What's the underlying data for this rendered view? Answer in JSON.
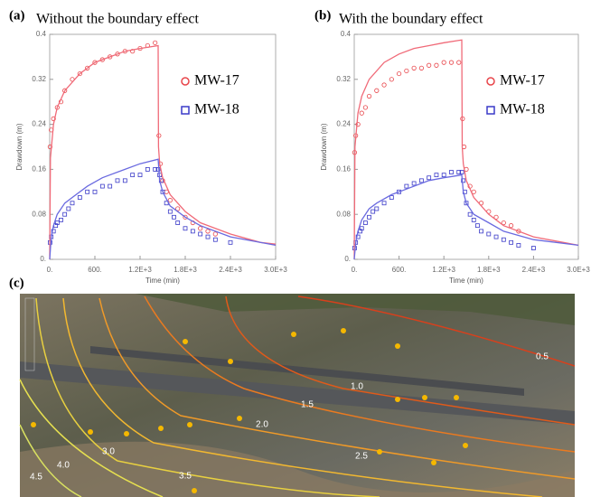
{
  "chart_data": [
    {
      "type": "scatter",
      "label": "(a)",
      "title": "Without the boundary effect",
      "x_label": "Time (min)",
      "y_label": "Drawdown (m)",
      "xlim": [
        0,
        3000
      ],
      "ylim": [
        0,
        0.4
      ],
      "xticks": [
        {
          "value": 0,
          "label": "0."
        },
        {
          "value": 600,
          "label": "600."
        },
        {
          "value": 1200,
          "label": "1.2E+3"
        },
        {
          "value": 1800,
          "label": "1.8E+3"
        },
        {
          "value": 2400,
          "label": "2.4E+3"
        },
        {
          "value": 3000,
          "label": "3.0E+3"
        }
      ],
      "yticks": [
        {
          "value": 0,
          "label": "0."
        },
        0.08,
        0.16,
        0.24,
        0.32,
        0.4
      ],
      "legend": "right",
      "series": [
        {
          "name": "MW-17",
          "marker": "circle",
          "color": "#e8454a",
          "x": [
            5,
            20,
            50,
            100,
            150,
            200,
            300,
            400,
            500,
            600,
            700,
            800,
            900,
            1000,
            1100,
            1200,
            1300,
            1400,
            1450,
            1470,
            1500,
            1550,
            1600,
            1700,
            1800,
            1900,
            2000,
            2100,
            2200
          ],
          "values": [
            0.2,
            0.23,
            0.25,
            0.27,
            0.28,
            0.3,
            0.32,
            0.33,
            0.34,
            0.35,
            0.355,
            0.36,
            0.365,
            0.37,
            0.37,
            0.375,
            0.38,
            0.385,
            0.22,
            0.17,
            0.14,
            0.12,
            0.105,
            0.09,
            0.075,
            0.065,
            0.055,
            0.05,
            0.045
          ]
        },
        {
          "name": "MW-18",
          "marker": "square",
          "color": "#3a3ac8",
          "x": [
            5,
            20,
            50,
            80,
            100,
            150,
            200,
            250,
            300,
            400,
            500,
            600,
            700,
            800,
            900,
            1000,
            1100,
            1200,
            1300,
            1400,
            1440,
            1460,
            1480,
            1500,
            1550,
            1600,
            1650,
            1700,
            1800,
            1900,
            2000,
            2100,
            2200,
            2400
          ],
          "values": [
            0.03,
            0.04,
            0.05,
            0.06,
            0.065,
            0.07,
            0.08,
            0.09,
            0.1,
            0.11,
            0.12,
            0.12,
            0.13,
            0.13,
            0.14,
            0.14,
            0.15,
            0.15,
            0.16,
            0.16,
            0.16,
            0.15,
            0.14,
            0.12,
            0.1,
            0.085,
            0.075,
            0.065,
            0.055,
            0.05,
            0.045,
            0.04,
            0.035,
            0.03
          ]
        },
        {
          "marker": "line",
          "color": "#f06a78",
          "x": [
            0,
            10,
            50,
            100,
            200,
            400,
            600,
            800,
            1000,
            1200,
            1440,
            1445,
            1460,
            1500,
            1600,
            1800,
            2000,
            2400,
            2800,
            3000
          ],
          "values": [
            0,
            0.18,
            0.24,
            0.27,
            0.3,
            0.33,
            0.35,
            0.36,
            0.37,
            0.375,
            0.38,
            0.2,
            0.17,
            0.145,
            0.115,
            0.085,
            0.065,
            0.045,
            0.03,
            0.027
          ]
        },
        {
          "marker": "line",
          "color": "#6a6ae0",
          "x": [
            0,
            20,
            50,
            100,
            200,
            300,
            500,
            700,
            1000,
            1200,
            1440,
            1460,
            1500,
            1600,
            1800,
            2000,
            2400,
            3000
          ],
          "values": [
            0,
            0.04,
            0.06,
            0.08,
            0.1,
            0.11,
            0.13,
            0.145,
            0.16,
            0.17,
            0.178,
            0.14,
            0.12,
            0.095,
            0.075,
            0.06,
            0.04,
            0.025
          ]
        }
      ]
    },
    {
      "type": "scatter",
      "label": "(b)",
      "title": "With the boundary effect",
      "x_label": "Time (min)",
      "y_label": "Drawdown (m)",
      "xlim": [
        0,
        3000
      ],
      "ylim": [
        0,
        0.4
      ],
      "xticks": [
        {
          "value": 0,
          "label": "0."
        },
        {
          "value": 600,
          "label": "600."
        },
        {
          "value": 1200,
          "label": "1.2E+3"
        },
        {
          "value": 1800,
          "label": "1.8E+3"
        },
        {
          "value": 2400,
          "label": "2.4E+3"
        },
        {
          "value": 3000,
          "label": "3.0E+3"
        }
      ],
      "yticks": [
        {
          "value": 0,
          "label": "0."
        },
        0.08,
        0.16,
        0.24,
        0.32,
        0.4
      ],
      "legend": "right",
      "series": [
        {
          "name": "MW-17",
          "marker": "circle",
          "color": "#e8454a",
          "x": [
            5,
            20,
            50,
            100,
            150,
            200,
            300,
            400,
            500,
            600,
            700,
            800,
            900,
            1000,
            1100,
            1200,
            1300,
            1400,
            1450,
            1470,
            1500,
            1550,
            1600,
            1700,
            1800,
            1900,
            2000,
            2100,
            2200
          ],
          "values": [
            0.19,
            0.22,
            0.24,
            0.26,
            0.27,
            0.29,
            0.3,
            0.31,
            0.32,
            0.33,
            0.335,
            0.34,
            0.34,
            0.345,
            0.345,
            0.35,
            0.35,
            0.35,
            0.25,
            0.2,
            0.16,
            0.13,
            0.12,
            0.1,
            0.085,
            0.075,
            0.065,
            0.06,
            0.05
          ]
        },
        {
          "name": "MW-18",
          "marker": "square",
          "color": "#3a3ac8",
          "x": [
            5,
            20,
            50,
            80,
            100,
            150,
            200,
            250,
            300,
            400,
            500,
            600,
            700,
            800,
            900,
            1000,
            1100,
            1200,
            1300,
            1400,
            1440,
            1460,
            1480,
            1500,
            1550,
            1600,
            1650,
            1700,
            1800,
            1900,
            2000,
            2100,
            2200,
            2400
          ],
          "values": [
            0.02,
            0.03,
            0.04,
            0.05,
            0.055,
            0.065,
            0.075,
            0.085,
            0.09,
            0.1,
            0.11,
            0.12,
            0.13,
            0.135,
            0.14,
            0.145,
            0.15,
            0.15,
            0.155,
            0.155,
            0.155,
            0.14,
            0.12,
            0.1,
            0.08,
            0.07,
            0.06,
            0.05,
            0.045,
            0.04,
            0.035,
            0.03,
            0.025,
            0.02
          ]
        },
        {
          "marker": "line",
          "color": "#f06a78",
          "x": [
            0,
            10,
            50,
            100,
            200,
            400,
            600,
            800,
            1000,
            1200,
            1440,
            1445,
            1460,
            1500,
            1600,
            1800,
            2000,
            2400,
            2800,
            3000
          ],
          "values": [
            0,
            0.2,
            0.26,
            0.29,
            0.32,
            0.35,
            0.365,
            0.375,
            0.38,
            0.385,
            0.39,
            0.2,
            0.17,
            0.14,
            0.11,
            0.08,
            0.06,
            0.04,
            0.03,
            0.025
          ]
        },
        {
          "marker": "line",
          "color": "#6a6ae0",
          "x": [
            0,
            20,
            50,
            100,
            200,
            300,
            500,
            700,
            1000,
            1200,
            1440,
            1460,
            1500,
            1600,
            1800,
            2000,
            2400,
            3000
          ],
          "values": [
            0,
            0.03,
            0.05,
            0.07,
            0.09,
            0.1,
            0.115,
            0.125,
            0.14,
            0.145,
            0.15,
            0.12,
            0.1,
            0.08,
            0.065,
            0.05,
            0.035,
            0.025
          ]
        }
      ]
    }
  ],
  "map": {
    "label": "(c)",
    "contour_labels": [
      "0.5",
      "1.0",
      "1.5",
      "2.0",
      "2.5",
      "3.0",
      "3.5",
      "4.0",
      "4.5"
    ]
  }
}
